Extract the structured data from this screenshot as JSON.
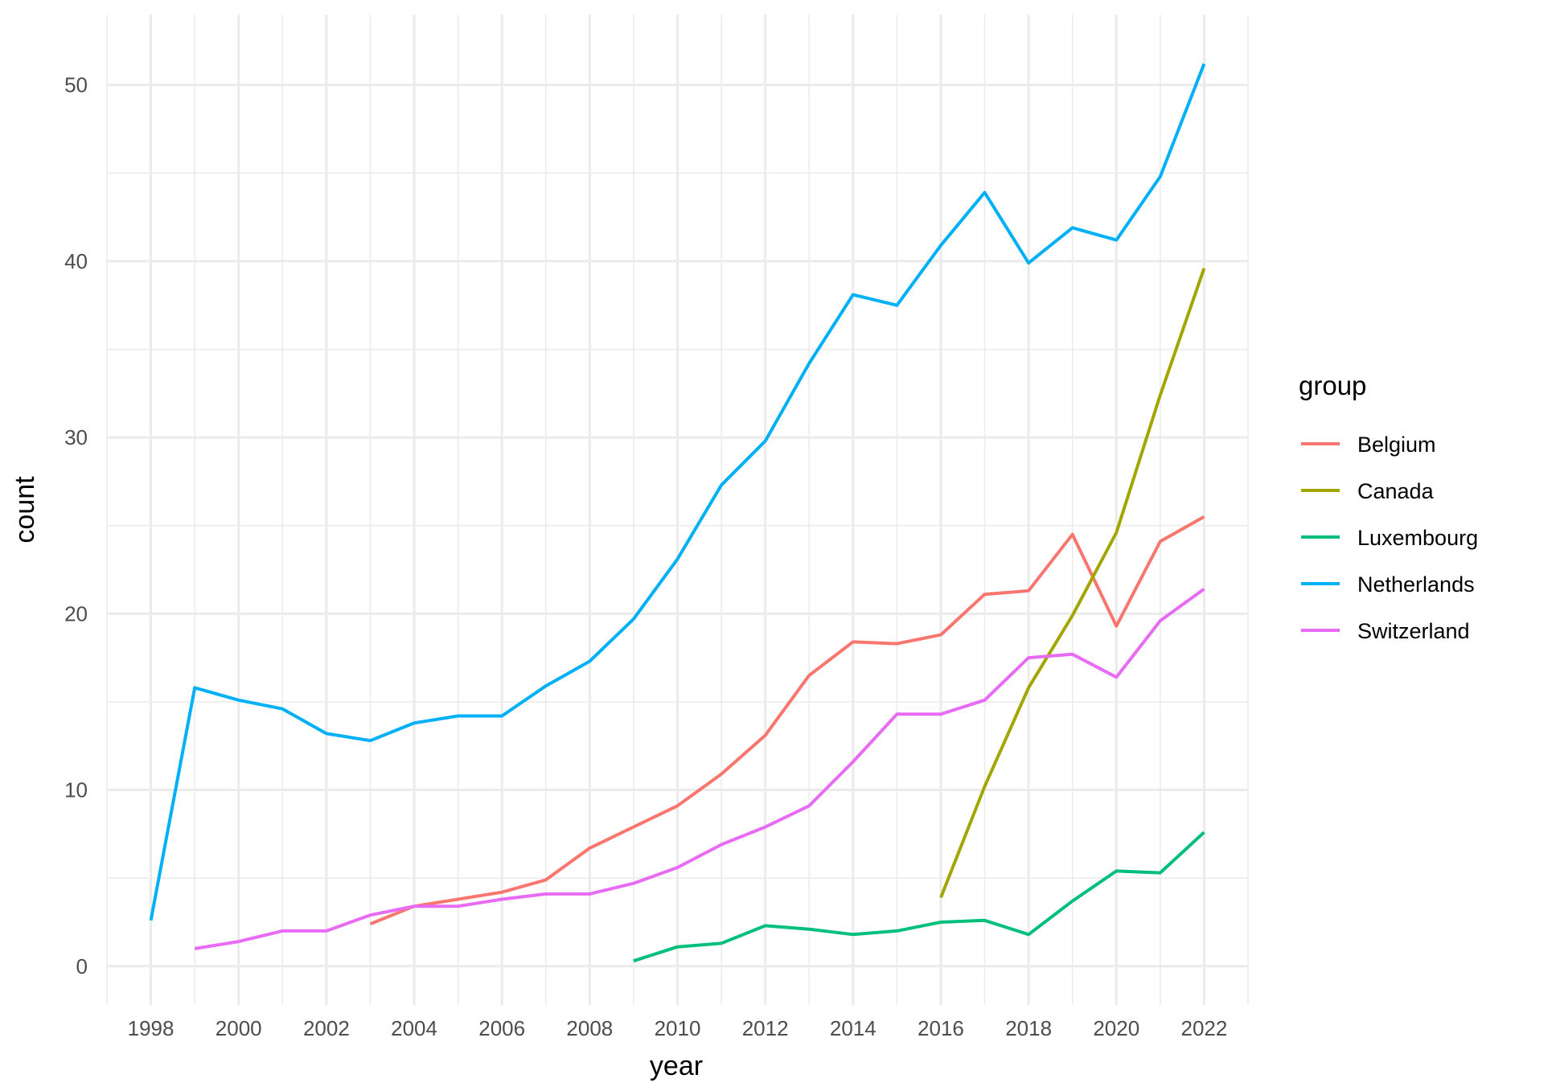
{
  "chart_data": {
    "type": "line",
    "xlabel": "year",
    "ylabel": "count",
    "xlim": [
      1997,
      2023
    ],
    "ylim": [
      -2.2,
      54
    ],
    "x_ticks": [
      1998,
      2000,
      2002,
      2004,
      2006,
      2008,
      2010,
      2012,
      2014,
      2016,
      2018,
      2020,
      2022
    ],
    "y_ticks": [
      0,
      10,
      20,
      30,
      40,
      50
    ],
    "grid": true,
    "legend": {
      "title": "group",
      "placement": "right"
    },
    "series": [
      {
        "name": "Belgium",
        "color": "#F8766D",
        "x": [
          2003,
          2004,
          2005,
          2006,
          2007,
          2008,
          2009,
          2010,
          2011,
          2012,
          2013,
          2014,
          2015,
          2016,
          2017,
          2018,
          2019,
          2020,
          2021,
          2022
        ],
        "y": [
          2.4,
          3.4,
          3.8,
          4.2,
          4.9,
          6.7,
          7.9,
          9.1,
          10.9,
          13.1,
          16.5,
          18.4,
          18.3,
          18.8,
          21.1,
          21.3,
          24.5,
          19.3,
          24.1,
          25.5
        ]
      },
      {
        "name": "Canada",
        "color": "#A3A500",
        "x": [
          2016,
          2017,
          2018,
          2019,
          2020,
          2021,
          2022
        ],
        "y": [
          3.9,
          10.2,
          15.8,
          19.9,
          24.6,
          32.4,
          39.6
        ]
      },
      {
        "name": "Luxembourg",
        "color": "#00BF7D",
        "x": [
          2009,
          2010,
          2011,
          2012,
          2013,
          2014,
          2015,
          2016,
          2017,
          2018,
          2019,
          2020,
          2021,
          2022
        ],
        "y": [
          0.3,
          1.1,
          1.3,
          2.3,
          2.1,
          1.8,
          2.0,
          2.5,
          2.6,
          1.8,
          3.7,
          5.4,
          5.3,
          7.6
        ]
      },
      {
        "name": "Netherlands",
        "color": "#00B0F6",
        "x": [
          1998,
          1999,
          2000,
          2001,
          2002,
          2003,
          2004,
          2005,
          2006,
          2007,
          2008,
          2009,
          2010,
          2011,
          2012,
          2013,
          2014,
          2015,
          2016,
          2017,
          2018,
          2019,
          2020,
          2021,
          2022
        ],
        "y": [
          2.6,
          15.8,
          15.1,
          14.6,
          13.2,
          12.8,
          13.8,
          14.2,
          14.2,
          15.9,
          17.3,
          19.7,
          23.1,
          27.3,
          29.8,
          34.2,
          38.1,
          37.5,
          40.9,
          43.9,
          39.9,
          41.9,
          41.2,
          44.8,
          51.2
        ]
      },
      {
        "name": "Switzerland",
        "color": "#E76BF3",
        "x": [
          1999,
          2000,
          2001,
          2002,
          2003,
          2004,
          2005,
          2006,
          2007,
          2008,
          2009,
          2010,
          2011,
          2012,
          2013,
          2014,
          2015,
          2016,
          2017,
          2018,
          2019,
          2020,
          2021,
          2022
        ],
        "y": [
          1.0,
          1.4,
          2.0,
          2.0,
          2.9,
          3.4,
          3.4,
          3.8,
          4.1,
          4.1,
          4.7,
          5.6,
          6.9,
          7.9,
          9.1,
          11.6,
          14.3,
          14.3,
          15.1,
          17.5,
          17.7,
          16.4,
          19.6,
          21.4
        ]
      }
    ]
  }
}
